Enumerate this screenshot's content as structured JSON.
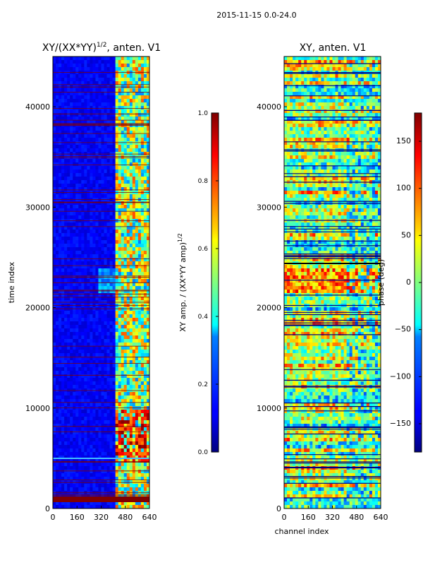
{
  "suptitle": "2015-11-15 0.0-24.0",
  "colors": {
    "saturated_red": "#800000",
    "axis": "#000000",
    "grid_line_dark": "#000080"
  },
  "chart_data": [
    {
      "type": "heatmap",
      "title_prefix": "XY/(XX*YY)",
      "title_exponent": "1/2",
      "title_suffix": ", anten. V1",
      "xlabel": "",
      "ylabel": "time index",
      "x_range": [
        0,
        640
      ],
      "y_range": [
        0,
        45000
      ],
      "x_ticks": [
        0,
        160,
        320,
        480,
        640
      ],
      "y_ticks": [
        0,
        10000,
        20000,
        30000,
        40000
      ],
      "colormap": "jet",
      "colorbar": {
        "label_prefix": "XY amp. / (XX*YY amp)",
        "label_exponent": "1/2",
        "range": [
          0.0,
          1.0
        ],
        "ticks": [
          "0.0",
          "0.2",
          "0.4",
          "0.6",
          "0.8",
          "1.0"
        ]
      }
    },
    {
      "type": "heatmap",
      "title": "XY, anten. V1",
      "xlabel": "channel index",
      "ylabel": "",
      "x_range": [
        0,
        640
      ],
      "y_range": [
        0,
        45000
      ],
      "x_ticks": [
        0,
        160,
        320,
        480,
        640
      ],
      "y_ticks": [
        0,
        10000,
        20000,
        30000,
        40000
      ],
      "colormap": "jet",
      "colorbar": {
        "label": "phase (deg)",
        "range": [
          -180,
          180
        ],
        "ticks": [
          "−150",
          "−100",
          "−50",
          "0",
          "50",
          "100",
          "150"
        ]
      }
    }
  ]
}
